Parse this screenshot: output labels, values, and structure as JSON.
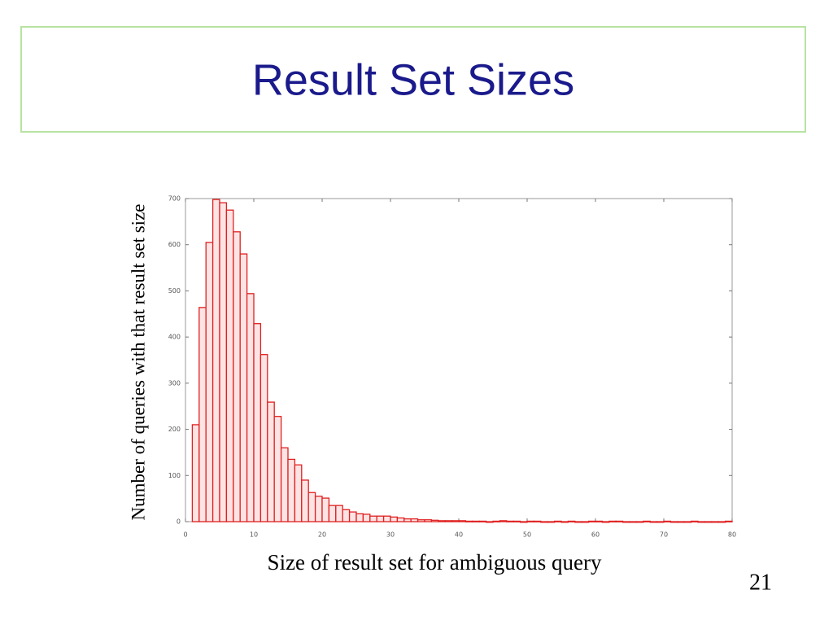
{
  "chart_data": {
    "type": "histogram",
    "title": "Result Set Sizes",
    "xlabel": "Size of result set for ambiguous query",
    "ylabel": "Number of queries with that result set size",
    "bins": [
      1,
      2,
      3,
      4,
      5,
      6,
      7,
      8,
      9,
      10,
      11,
      12,
      13,
      14,
      15,
      16,
      17,
      18,
      19,
      20,
      21,
      22,
      23,
      24,
      25,
      26,
      27,
      28,
      29,
      30,
      31,
      32,
      33,
      34,
      35,
      36,
      37,
      38,
      39,
      40,
      41,
      42,
      43,
      44,
      45,
      46,
      47,
      48,
      49,
      50,
      51,
      52,
      53,
      54,
      55,
      56,
      57,
      58,
      59,
      60,
      61,
      62,
      63,
      64,
      65,
      66,
      67,
      68,
      69,
      70,
      71,
      72,
      73,
      74,
      75,
      76,
      77,
      78,
      79,
      80
    ],
    "values": [
      210,
      464,
      605,
      698,
      691,
      675,
      628,
      580,
      494,
      429,
      362,
      259,
      228,
      160,
      135,
      123,
      90,
      63,
      55,
      51,
      35,
      35,
      26,
      21,
      17,
      16,
      12,
      12,
      12,
      10,
      8,
      6,
      6,
      4,
      4,
      3,
      2,
      2,
      2,
      2,
      1,
      1,
      1,
      0,
      1,
      2,
      1,
      1,
      0,
      1,
      1,
      0,
      0,
      1,
      0,
      1,
      0,
      0,
      1,
      1,
      0,
      1,
      1,
      0,
      0,
      0,
      1,
      0,
      0,
      1,
      0,
      0,
      0,
      1,
      0,
      0,
      0,
      0,
      1
    ],
    "color": "#e02020",
    "xlim": [
      0,
      80
    ],
    "xticks": [
      0,
      10,
      20,
      30,
      40,
      50,
      60,
      70,
      80
    ],
    "ylim": [
      0,
      700
    ],
    "yticks": [
      0,
      100,
      200,
      300,
      400,
      500,
      600,
      700
    ]
  },
  "page_number": "21"
}
